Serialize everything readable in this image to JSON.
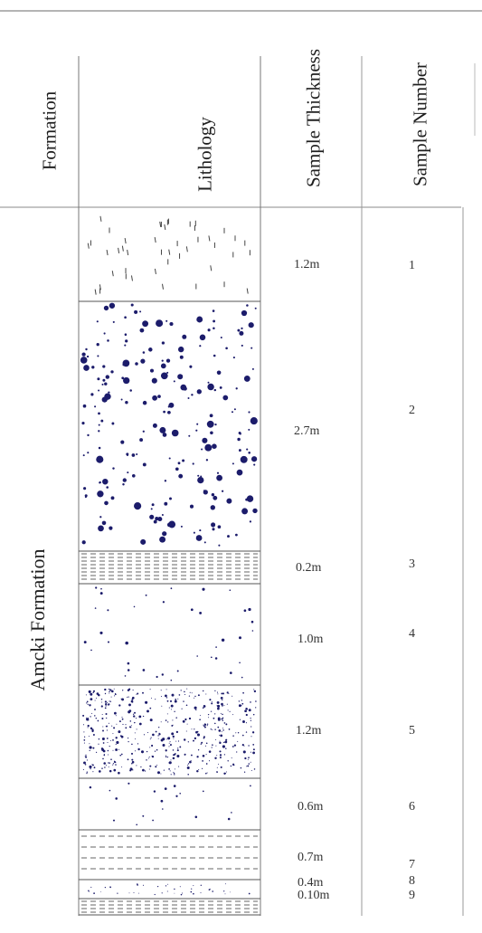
{
  "headers": {
    "formation": "Formation",
    "lithology": "Lithology",
    "sample_thickness": "Sample Thickness",
    "sample_number": "Sample Number"
  },
  "formation_name": "Amcki Formation",
  "layers": [
    {
      "number": "1",
      "thickness": "1.2m",
      "pattern": "dash-marks"
    },
    {
      "number": "2",
      "thickness": "2.7m",
      "pattern": "large-dots"
    },
    {
      "number": "3",
      "thickness": "0.2m",
      "pattern": "dashed-lines"
    },
    {
      "number": "4",
      "thickness": "1.0m",
      "pattern": "sparse-dots"
    },
    {
      "number": "5",
      "thickness": "1.2m",
      "pattern": "dense-fine-dots"
    },
    {
      "number": "6",
      "thickness": "0.6m",
      "pattern": "sparse-dots"
    },
    {
      "number": "7",
      "thickness": "0.7m",
      "pattern": "dashed-lines"
    },
    {
      "number": "8",
      "thickness": "0.4m",
      "pattern": "fine-dots"
    },
    {
      "number": "9",
      "thickness": "0.10m",
      "pattern": "dashed-lines"
    }
  ],
  "colors": {
    "dot": "#1c1c6b",
    "line": "#555555",
    "dash": "#666666"
  }
}
